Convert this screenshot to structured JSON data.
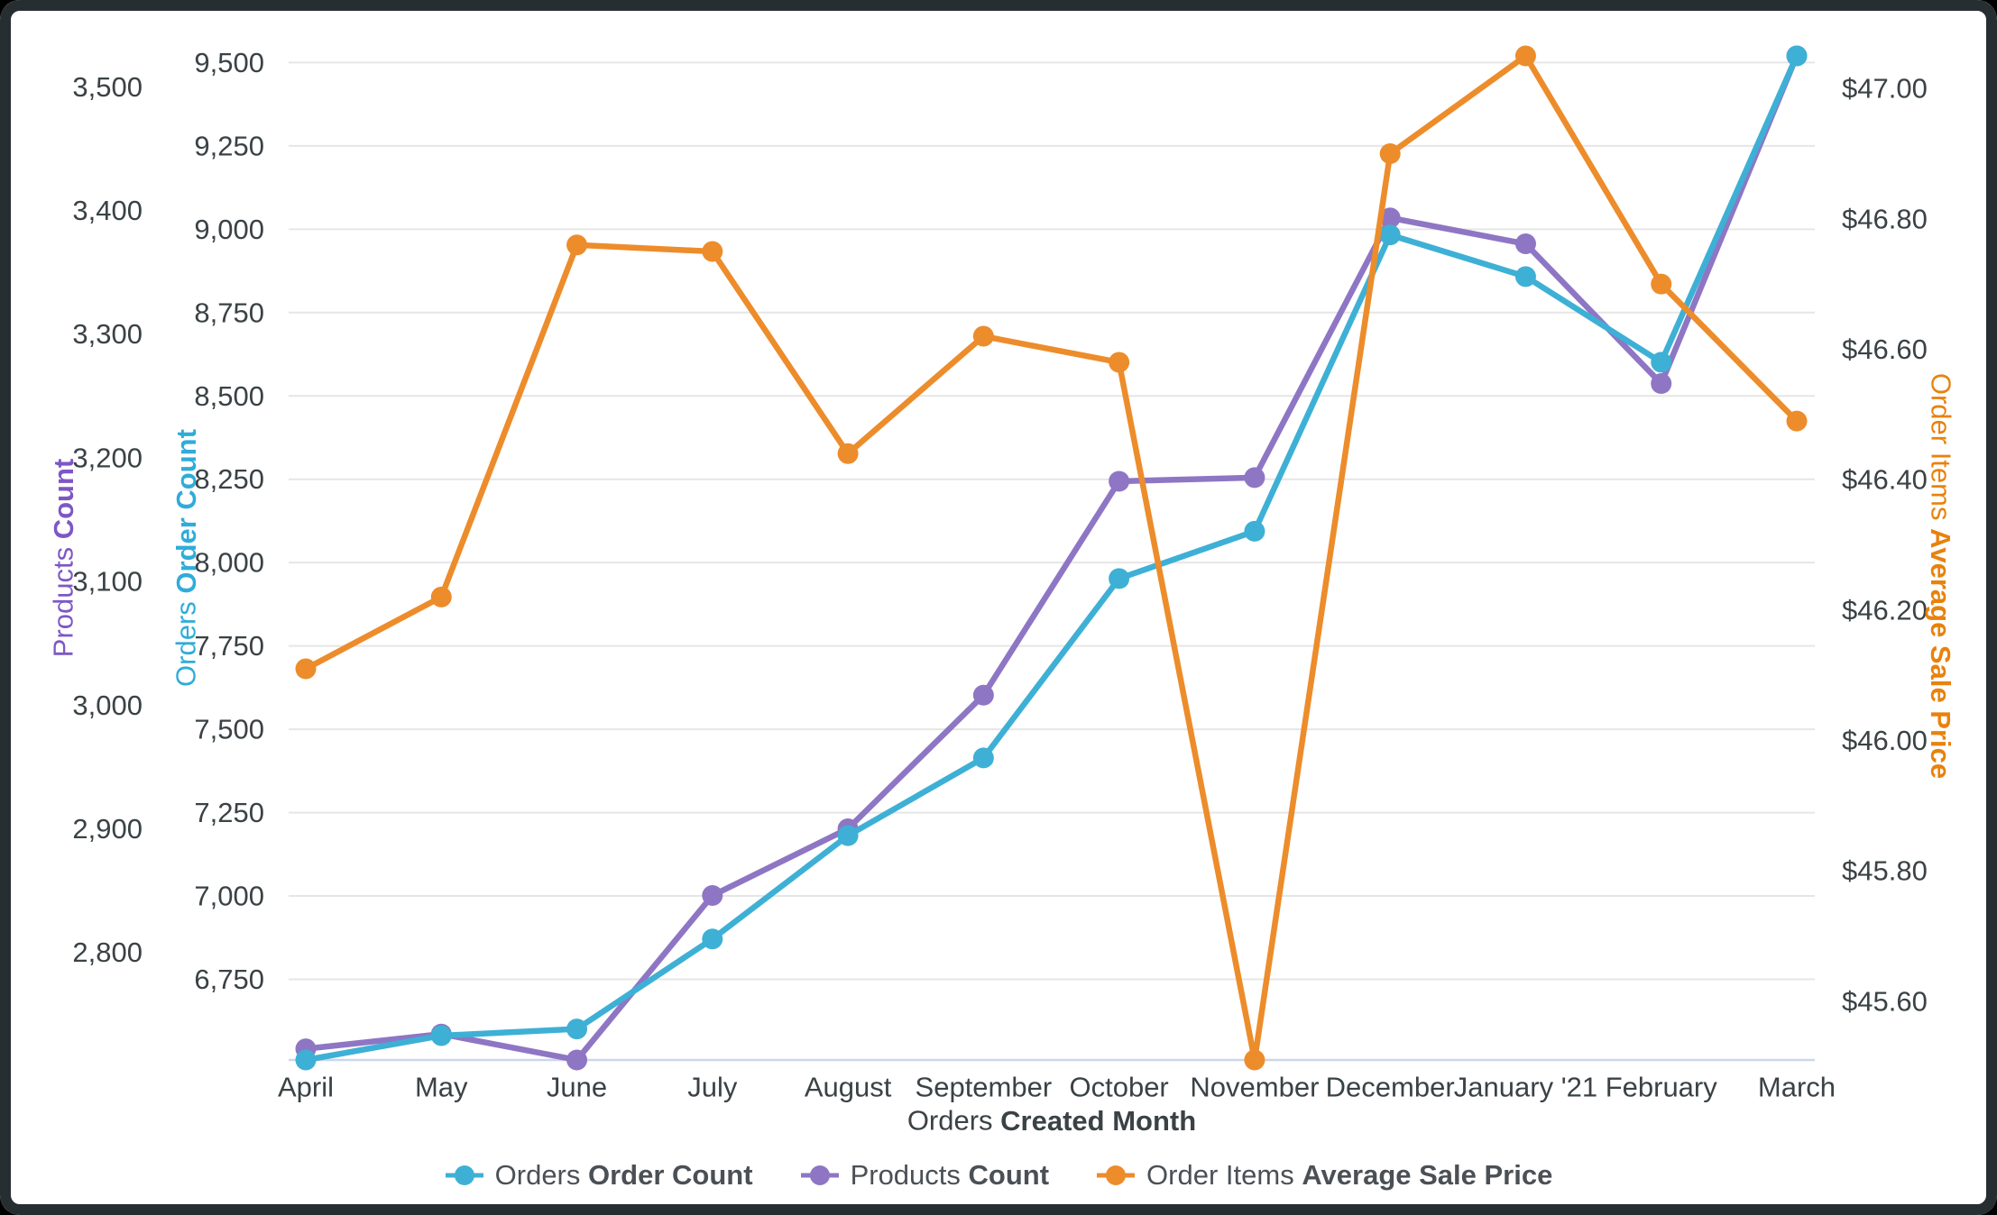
{
  "chart_data": {
    "type": "line",
    "categories": [
      "April",
      "May",
      "June",
      "July",
      "August",
      "September",
      "October",
      "November",
      "December",
      "January '21",
      "February",
      "March"
    ],
    "series": [
      {
        "key": "orders",
        "name_regular": "Orders",
        "name_bold": "Order Count",
        "color": "#3EB0D5",
        "axis": "orders",
        "values": [
          6508,
          6581,
          6601,
          6871,
          7181,
          7414,
          7952,
          8094,
          8983,
          8858,
          8601,
          9520
        ]
      },
      {
        "key": "products",
        "name_regular": "Products",
        "name_bold": "Count",
        "color": "#8E76C4",
        "axis": "products",
        "values": [
          2722,
          2734,
          2713,
          2846,
          2900,
          3008,
          3181,
          3184,
          3394,
          3373,
          3260,
          3525
        ]
      },
      {
        "key": "price",
        "name_regular": "Order Items",
        "name_bold": "Average Sale Price",
        "color": "#ED8C2B",
        "axis": "price",
        "values": [
          46.11,
          46.22,
          46.76,
          46.75,
          46.44,
          46.62,
          46.58,
          45.51,
          46.9,
          47.05,
          46.7,
          46.49
        ]
      }
    ],
    "axes": {
      "products": {
        "title_regular": "Products",
        "title_bold": "Count",
        "title_color": "#7E57C5",
        "min": 2713,
        "max": 3525,
        "ticks": [
          {
            "label": "2,800",
            "value": 2800
          },
          {
            "label": "2,900",
            "value": 2900
          },
          {
            "label": "3,000",
            "value": 3000
          },
          {
            "label": "3,100",
            "value": 3100
          },
          {
            "label": "3,200",
            "value": 3200
          },
          {
            "label": "3,300",
            "value": 3300
          },
          {
            "label": "3,400",
            "value": 3400
          },
          {
            "label": "3,500",
            "value": 3500
          }
        ]
      },
      "orders": {
        "title_regular": "Orders",
        "title_bold": "Order Count",
        "title_color": "#2FACD9",
        "min": 6508,
        "max": 9520,
        "ticks": [
          {
            "label": "6,750",
            "value": 6750
          },
          {
            "label": "7,000",
            "value": 7000
          },
          {
            "label": "7,250",
            "value": 7250
          },
          {
            "label": "7,500",
            "value": 7500
          },
          {
            "label": "7,750",
            "value": 7750
          },
          {
            "label": "8,000",
            "value": 8000
          },
          {
            "label": "8,250",
            "value": 8250
          },
          {
            "label": "8,500",
            "value": 8500
          },
          {
            "label": "8,750",
            "value": 8750
          },
          {
            "label": "9,000",
            "value": 9000
          },
          {
            "label": "9,250",
            "value": 9250
          },
          {
            "label": "9,500",
            "value": 9500
          }
        ]
      },
      "price": {
        "title_regular": "Order Items",
        "title_bold": "Average Sale Price",
        "title_color": "#E8820C",
        "min": 45.51,
        "max": 47.05,
        "ticks": [
          {
            "label": "$45.60",
            "value": 45.6
          },
          {
            "label": "$45.80",
            "value": 45.8
          },
          {
            "label": "$46.00",
            "value": 46.0
          },
          {
            "label": "$46.20",
            "value": 46.2
          },
          {
            "label": "$46.40",
            "value": 46.4
          },
          {
            "label": "$46.60",
            "value": 46.6
          },
          {
            "label": "$46.80",
            "value": 46.8
          },
          {
            "label": "$47.00",
            "value": 47.0
          }
        ]
      }
    },
    "xaxis": {
      "title_regular": "Orders",
      "title_bold": "Created Month",
      "title_color": "#3A4245"
    },
    "legend": [
      {
        "regular": "Orders",
        "bold": "Order Count",
        "color": "#3EB0D5"
      },
      {
        "regular": "Products",
        "bold": "Count",
        "color": "#8E76C4"
      },
      {
        "regular": "Order Items",
        "bold": "Average Sale Price",
        "color": "#ED8C2B"
      }
    ],
    "style": {
      "grid_color": "#E6E6E6",
      "baseline_color": "#CCD6EB",
      "tick_text_color": "#3A4245",
      "legend_text_color": "#4A5055",
      "frame_color": "#272E31",
      "background": "#FFFFFF"
    }
  }
}
